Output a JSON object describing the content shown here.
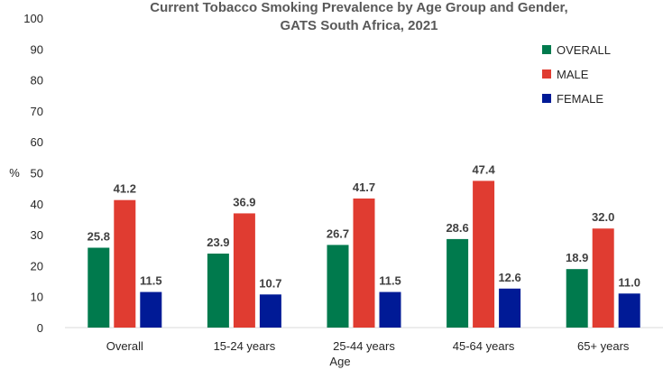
{
  "chart_data": {
    "type": "bar",
    "title_line1": "Current Tobacco Smoking Prevalence by Age Group and Gender,",
    "title_line2": "GATS South Africa, 2021",
    "xlabel": "Age",
    "ylabel": "%",
    "ylim": [
      0,
      100
    ],
    "yticks": [
      0,
      10,
      20,
      30,
      40,
      50,
      60,
      70,
      80,
      90,
      100
    ],
    "grid": false,
    "legend_position": "top-right",
    "categories": [
      "Overall",
      "15-24 years",
      "25-44 years",
      "45-64 years",
      "65+ years"
    ],
    "series": [
      {
        "name": "OVERALL",
        "color": "#007A4D",
        "values": [
          25.8,
          23.9,
          26.7,
          28.6,
          18.9
        ],
        "labels": [
          "25.8",
          "23.9",
          "26.7",
          "28.6",
          "18.9"
        ]
      },
      {
        "name": "MALE",
        "color": "#E03C31",
        "values": [
          41.2,
          36.9,
          41.7,
          47.4,
          32.0
        ],
        "labels": [
          "41.2",
          "36.9",
          "41.7",
          "47.4",
          "32.0"
        ]
      },
      {
        "name": "FEMALE",
        "color": "#001A96",
        "values": [
          11.5,
          10.7,
          11.5,
          12.6,
          11.0
        ],
        "labels": [
          "11.5",
          "10.7",
          "11.5",
          "12.6",
          "11.0"
        ]
      }
    ]
  }
}
